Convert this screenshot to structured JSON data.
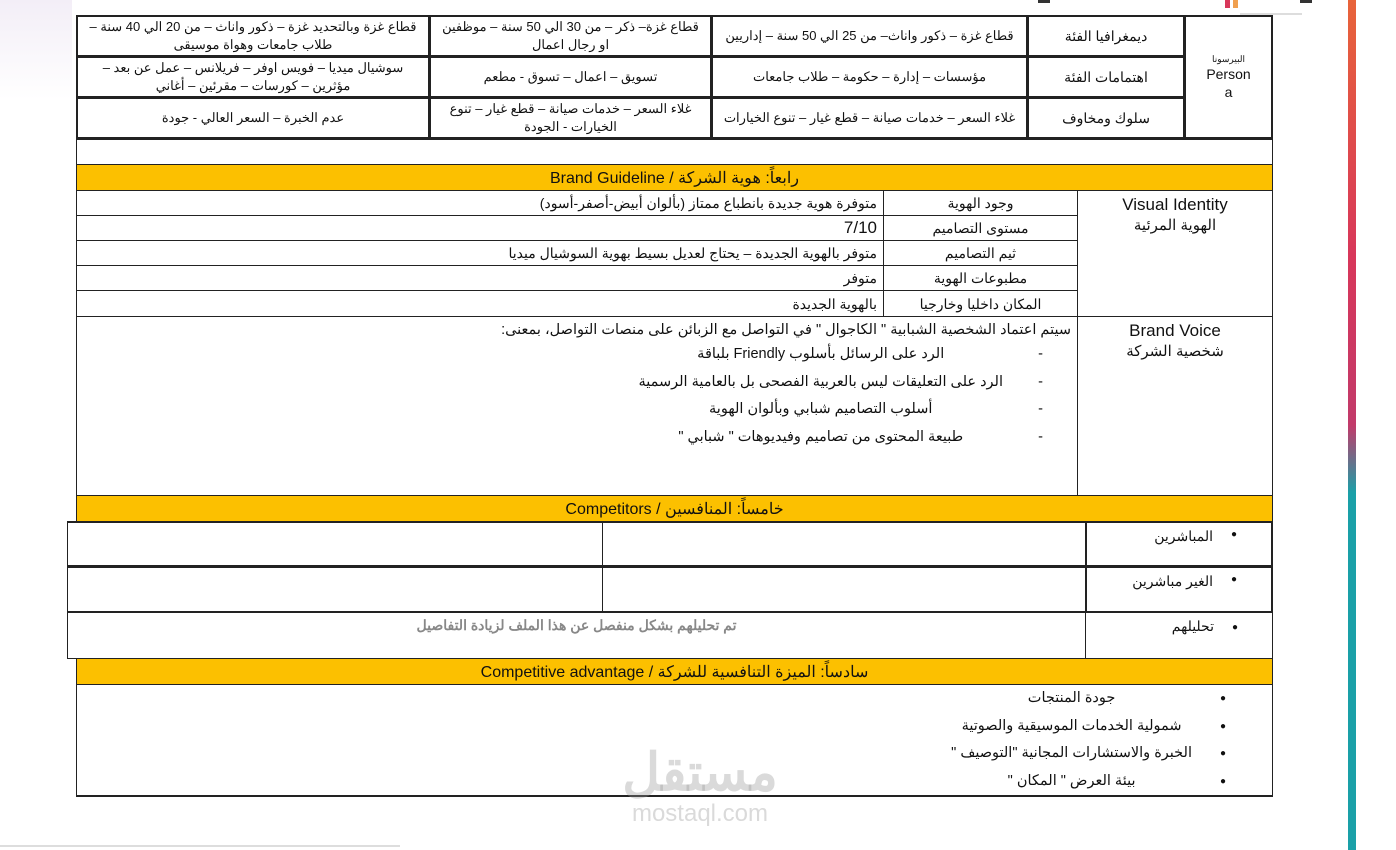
{
  "persona": {
    "title_ar": "البيرسونا",
    "title_en": "Persona",
    "rows": [
      {
        "label": "ديمغرافيا الفئة",
        "c1": "قطاع غزة – ذكور واناث– من 25 الي 50 سنة – إداريين",
        "c2": "قطاع غزة– ذكر – من 30 الي 50 سنة – موظفين او رجال اعمال",
        "c3": "قطاع غزة وبالتحديد غزة – ذكور واناث – من 20 الي 40 سنة – طلاب جامعات وهواة موسيقى"
      },
      {
        "label": "اهتمامات الفئة",
        "c1": "مؤسسات – إدارة – حكومة – طلاب جامعات",
        "c2": "تسويق – اعمال – تسوق - مطعم",
        "c3": "سوشيال ميديا – فويس اوفر – فريلانس – عمل عن بعد – مؤثرين – كورسات – مقرئين – أغاني"
      },
      {
        "label": "سلوك ومخاوف",
        "c1": "غلاء السعر – خدمات صيانة – قطع غيار – تنوع الخيارات",
        "c2": "غلاء السعر – خدمات صيانة – قطع غيار – تنوع الخيارات - الجودة",
        "c3": "عدم الخبرة – السعر العالي - جودة"
      }
    ]
  },
  "brand_guideline": {
    "header": "رابعاً: هوية الشركة / Brand Guideline",
    "visual_identity_en": "Visual Identity",
    "visual_identity_ar": "الهوية المرئية",
    "rows": [
      {
        "label": "وجود الهوية",
        "value": "متوفرة هوية جديدة بانطباع ممتاز (بألوان أبيض-أصفر-أسود)"
      },
      {
        "label": "مستوى التصاميم",
        "value": "7/10"
      },
      {
        "label": "ثيم التصاميم",
        "value": "متوفر بالهوية الجديدة – يحتاج لعديل بسيط بهوية السوشيال ميديا"
      },
      {
        "label": "مطبوعات الهوية",
        "value": "متوفر"
      },
      {
        "label": "المكان داخليا وخارجيا",
        "value": "بالهوية الجديدة"
      }
    ],
    "brand_voice_en": "Brand Voice",
    "brand_voice_ar": "شخصية الشركة",
    "voice_intro": "سيتم اعتماد الشخصية الشبابية \" الكاجوال \" في التواصل مع الزبائن على منصات التواصل، بمعنى:",
    "voice_points": [
      "الرد على الرسائل بأسلوب Friendly بلباقة",
      "الرد على التعليقات ليس بالعربية الفصحى بل بالعامية الرسمية",
      "أسلوب التصاميم شبابي وبألوان الهوية",
      "طبيعة المحتوى من تصاميم وفيديوهات \" شبابي \""
    ]
  },
  "competitors": {
    "header": "خامساً: المنافسين / Competitors",
    "rows": [
      {
        "label": "المباشرين",
        "value": ""
      },
      {
        "label": "الغير مباشرين",
        "value": ""
      },
      {
        "label": "تحليلهم",
        "value": "تم تحليلهم بشكل منفصل عن هذا الملف لزيادة التفاصيل"
      }
    ]
  },
  "advantage": {
    "header": "سادساً: الميزة التنافسية للشركة / Competitive advantage",
    "items": [
      "جودة المنتجات",
      "شمولية الخدمات الموسيقية والصوتية",
      "الخبرة والاستشارات المجانية \"التوصيف \"",
      "بيئة العرض \" المكان \""
    ]
  },
  "watermark": {
    "logo_ar": "مستقل",
    "domain": "mostaql.com"
  },
  "colors": {
    "header_yellow": "#fcc000",
    "side_bar_top": "#e8643a",
    "side_bar_mid": "#d8375a",
    "side_bar_bottom": "#1aa0a8"
  }
}
